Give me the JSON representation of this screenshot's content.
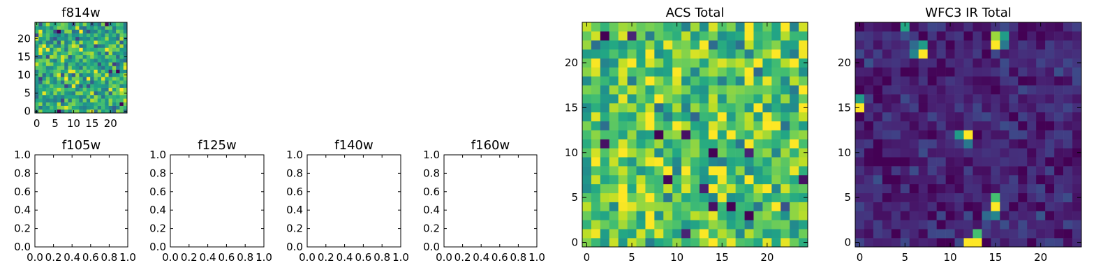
{
  "chart_data": [
    {
      "type": "heatmap",
      "title": "f814w",
      "colormap": "viridis",
      "grid_size": 25,
      "xlim": [
        -0.5,
        24.5
      ],
      "ylim": [
        -0.5,
        24.5
      ],
      "xticks": [
        0,
        5,
        10,
        15,
        20
      ],
      "yticks": [
        0,
        5,
        10,
        15,
        20
      ],
      "value_range": [
        0,
        1
      ],
      "background_level": 0.62,
      "background_spread": 0.22,
      "values_note": "pixel-level noise, generated per cell"
    },
    {
      "type": "heatmap",
      "title": "f105w",
      "empty": true,
      "xlim": [
        0,
        1
      ],
      "ylim": [
        0,
        1
      ],
      "xticks": [
        "0.0",
        "0.2",
        "0.4",
        "0.6",
        "0.8",
        "1.0"
      ],
      "yticks": [
        "0.0",
        "0.2",
        "0.4",
        "0.6",
        "0.8",
        "1.0"
      ]
    },
    {
      "type": "heatmap",
      "title": "f125w",
      "empty": true,
      "xlim": [
        0,
        1
      ],
      "ylim": [
        0,
        1
      ],
      "xticks": [
        "0.0",
        "0.2",
        "0.4",
        "0.6",
        "0.8",
        "1.0"
      ],
      "yticks": [
        "0.0",
        "0.2",
        "0.4",
        "0.6",
        "0.8",
        "1.0"
      ]
    },
    {
      "type": "heatmap",
      "title": "f140w",
      "empty": true,
      "xlim": [
        0,
        1
      ],
      "ylim": [
        0,
        1
      ],
      "xticks": [
        "0.0",
        "0.2",
        "0.4",
        "0.6",
        "0.8",
        "1.0"
      ],
      "yticks": [
        "0.0",
        "0.2",
        "0.4",
        "0.6",
        "0.8",
        "1.0"
      ]
    },
    {
      "type": "heatmap",
      "title": "f160w",
      "empty": true,
      "xlim": [
        0,
        1
      ],
      "ylim": [
        0,
        1
      ],
      "xticks": [
        "0.0",
        "0.2",
        "0.4",
        "0.6",
        "0.8",
        "1.0"
      ],
      "yticks": [
        "0.0",
        "0.2",
        "0.4",
        "0.6",
        "0.8",
        "1.0"
      ]
    },
    {
      "type": "heatmap",
      "title": "ACS Total",
      "colormap": "viridis",
      "grid_size": 25,
      "xlim": [
        -0.5,
        24.5
      ],
      "ylim": [
        -0.5,
        24.5
      ],
      "xticks": [
        0,
        5,
        10,
        15,
        20
      ],
      "yticks": [
        0,
        5,
        10,
        15,
        20
      ],
      "value_range": [
        0,
        1
      ],
      "background_level": 0.72,
      "background_spread": 0.2,
      "dark_cells": [
        [
          3,
          18,
          0.0
        ],
        [
          7,
          24,
          0.05
        ],
        [
          10,
          14,
          0.0
        ],
        [
          10,
          18,
          0.1
        ],
        [
          12,
          8,
          0.0
        ],
        [
          12,
          11,
          0.05
        ],
        [
          11,
          2,
          0.05
        ],
        [
          4,
          16,
          0.0
        ],
        [
          7,
          9,
          0.02
        ],
        [
          4,
          14,
          0.05
        ],
        [
          1,
          11,
          0.1
        ],
        [
          23,
          2,
          0.0
        ]
      ],
      "bright_cells": [
        [
          13,
          20,
          1.0
        ],
        [
          13,
          21,
          1.0
        ],
        [
          14,
          20,
          0.98
        ],
        [
          15,
          19,
          1.0
        ],
        [
          18,
          20,
          0.97
        ],
        [
          9,
          7,
          0.98
        ],
        [
          1,
          1,
          0.98
        ]
      ]
    },
    {
      "type": "heatmap",
      "title": "WFC3 IR Total",
      "colormap": "viridis",
      "grid_size": 25,
      "xlim": [
        -0.5,
        24.5
      ],
      "ylim": [
        -0.5,
        24.5
      ],
      "xticks": [
        0,
        5,
        10,
        15,
        20
      ],
      "yticks": [
        0,
        5,
        10,
        15,
        20
      ],
      "value_range": [
        0,
        1
      ],
      "background_level": 0.1,
      "background_spread": 0.08,
      "bright_cells": [
        [
          24,
          5,
          0.6
        ],
        [
          23,
          15,
          0.85
        ],
        [
          23,
          16,
          0.55
        ],
        [
          22,
          15,
          1.0
        ],
        [
          22,
          16,
          0.4
        ],
        [
          22,
          6,
          0.35
        ],
        [
          22,
          7,
          0.55
        ],
        [
          21,
          6,
          0.45
        ],
        [
          21,
          7,
          1.0
        ],
        [
          16,
          0,
          0.55
        ],
        [
          15,
          0,
          1.0
        ],
        [
          12,
          11,
          0.55
        ],
        [
          12,
          12,
          1.0
        ],
        [
          11,
          12,
          0.4
        ],
        [
          5,
          15,
          0.7
        ],
        [
          4,
          15,
          1.0
        ],
        [
          3,
          14,
          0.35
        ],
        [
          3,
          15,
          0.45
        ],
        [
          1,
          13,
          0.7
        ],
        [
          0,
          12,
          1.0
        ],
        [
          0,
          13,
          1.0
        ]
      ]
    }
  ]
}
